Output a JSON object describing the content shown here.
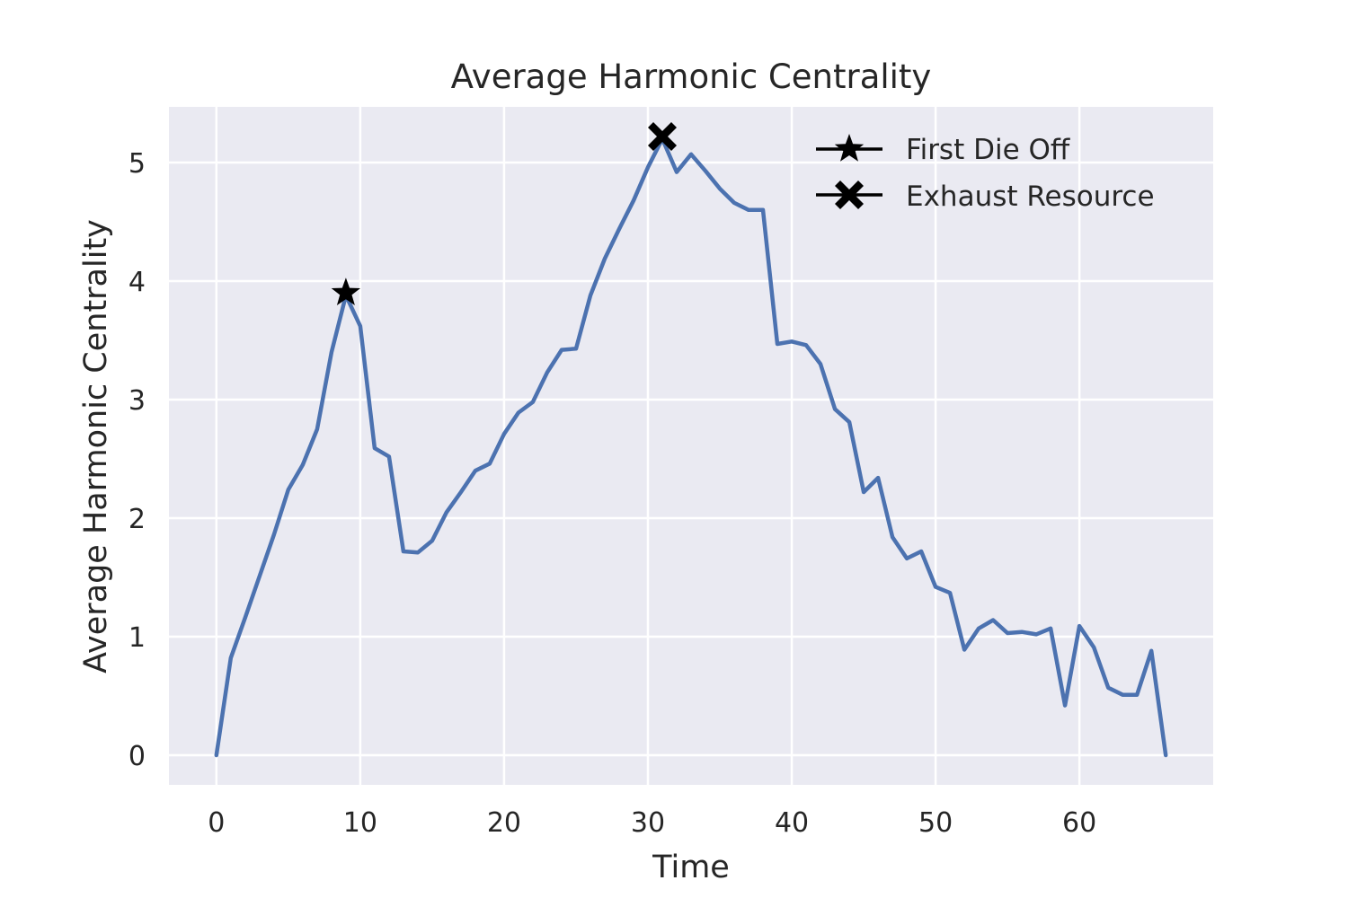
{
  "chart_data": {
    "type": "line",
    "title": "Average Harmonic Centrality",
    "xlabel": "Time",
    "ylabel": "Average Harmonic Centrality",
    "xlim": [
      -3.3,
      69.3
    ],
    "ylim": [
      -0.25,
      5.47
    ],
    "xticks": [
      0,
      10,
      20,
      30,
      40,
      50,
      60
    ],
    "yticks": [
      0,
      1,
      2,
      3,
      4,
      5
    ],
    "grid": true,
    "legend_position": "top-right",
    "colors": {
      "background": "#eaeaf2",
      "grid": "#ffffff",
      "line": "#4c72b0",
      "marker": "#000000"
    },
    "series": [
      {
        "x": [
          0,
          1,
          2,
          3,
          4,
          5,
          6,
          7,
          8,
          9,
          10,
          11,
          12,
          13,
          14,
          15,
          16,
          17,
          18,
          19,
          20,
          21,
          22,
          23,
          24,
          25,
          26,
          27,
          28,
          29,
          30,
          31,
          32,
          33,
          34,
          35,
          36,
          37,
          38,
          39,
          40,
          41,
          42,
          43,
          44,
          45,
          46,
          47,
          48,
          49,
          50,
          51,
          52,
          53,
          54,
          55,
          56,
          57,
          58,
          59,
          60,
          61,
          62,
          63,
          64,
          65,
          66
        ],
        "y": [
          0,
          0.82,
          1.16,
          1.51,
          1.86,
          2.24,
          2.45,
          2.75,
          3.4,
          3.88,
          3.62,
          2.59,
          2.52,
          1.72,
          1.71,
          1.81,
          2.05,
          2.22,
          2.4,
          2.46,
          2.71,
          2.89,
          2.98,
          3.23,
          3.42,
          3.43,
          3.88,
          4.19,
          4.44,
          4.68,
          4.96,
          5.2,
          4.92,
          5.07,
          4.93,
          4.78,
          4.66,
          4.6,
          4.6,
          3.47,
          3.49,
          3.46,
          3.3,
          2.92,
          2.81,
          2.22,
          2.34,
          1.84,
          1.66,
          1.72,
          1.42,
          1.37,
          0.89,
          1.07,
          1.14,
          1.03,
          1.04,
          1.02,
          1.07,
          0.42,
          1.09,
          0.91,
          0.57,
          0.51,
          0.51,
          0.88,
          0
        ]
      }
    ],
    "markers": [
      {
        "name": "First Die Off",
        "symbol": "star",
        "x": 9,
        "y": 3.9
      },
      {
        "name": "Exhaust Resource",
        "symbol": "x",
        "x": 31,
        "y": 5.22
      }
    ]
  }
}
